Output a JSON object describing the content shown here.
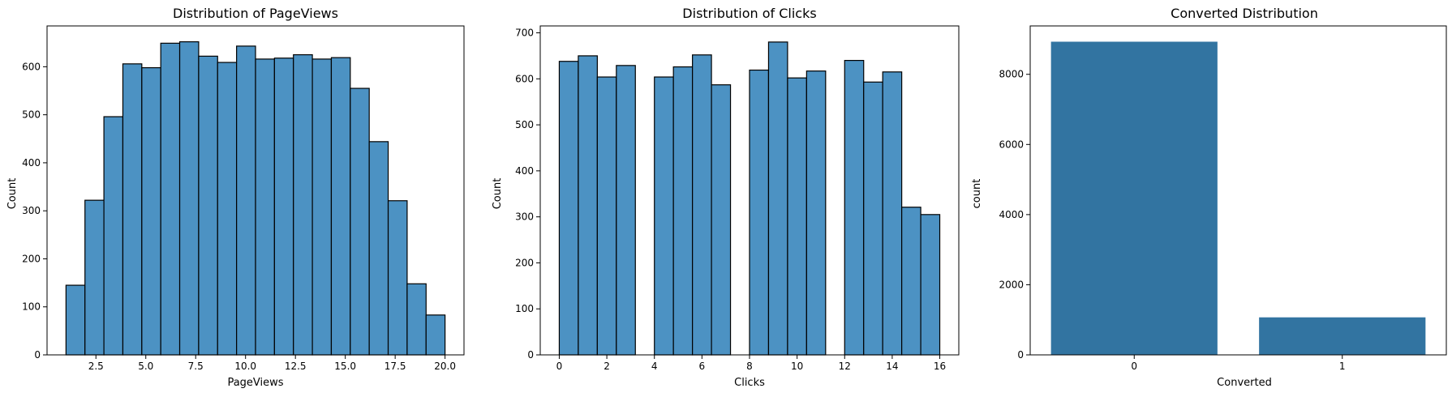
{
  "chart_data": [
    {
      "type": "histogram",
      "title": "Distribution of PageViews",
      "xlabel": "PageViews",
      "ylabel": "Count",
      "xlim": [
        0.05,
        20.95
      ],
      "ylim": [
        0,
        685
      ],
      "xticks": [
        "2.5",
        "5.0",
        "7.5",
        "10.0",
        "12.5",
        "15.0",
        "17.5",
        "20.0"
      ],
      "yticks": [
        "0",
        "100",
        "200",
        "300",
        "400",
        "500",
        "600"
      ],
      "bin_edges": [
        1,
        1.95,
        2.9,
        3.85,
        4.8,
        5.75,
        6.7,
        7.65,
        8.6,
        9.55,
        10.5,
        11.45,
        12.4,
        13.35,
        14.3,
        15.25,
        16.2,
        17.15,
        18.1,
        19.05,
        20
      ],
      "values": [
        145,
        322,
        496,
        606,
        598,
        649,
        652,
        622,
        609,
        643,
        616,
        618,
        625,
        616,
        619,
        555,
        444,
        321,
        148,
        83
      ],
      "color": "#4c92c3"
    },
    {
      "type": "histogram",
      "title": "Distribution of Clicks",
      "xlabel": "Clicks",
      "ylabel": "Count",
      "xlim": [
        -0.8,
        16.8
      ],
      "ylim": [
        0,
        715
      ],
      "xticks": [
        "0",
        "2",
        "4",
        "6",
        "8",
        "10",
        "12",
        "14",
        "16"
      ],
      "yticks": [
        "0",
        "100",
        "200",
        "300",
        "400",
        "500",
        "600",
        "700"
      ],
      "bin_edges": [
        0,
        0.8,
        1.6,
        2.4,
        3.2,
        4.0,
        4.8,
        5.6,
        6.4,
        7.2,
        8.0,
        8.8,
        9.6,
        10.4,
        11.2,
        12.0,
        12.8,
        13.6,
        14.4,
        15.2,
        16.0
      ],
      "values": [
        638,
        650,
        604,
        629,
        0,
        604,
        626,
        652,
        587,
        0,
        619,
        680,
        602,
        617,
        0,
        640,
        593,
        615,
        321,
        305
      ],
      "color": "#4c92c3"
    },
    {
      "type": "bar",
      "title": "Converted Distribution",
      "xlabel": "Converted",
      "ylabel": "count",
      "categories": [
        "0",
        "1"
      ],
      "values": [
        8930,
        1070
      ],
      "ylim": [
        0,
        9380
      ],
      "yticks": [
        "0",
        "2000",
        "4000",
        "6000",
        "8000"
      ],
      "color": "#3274a1"
    }
  ]
}
